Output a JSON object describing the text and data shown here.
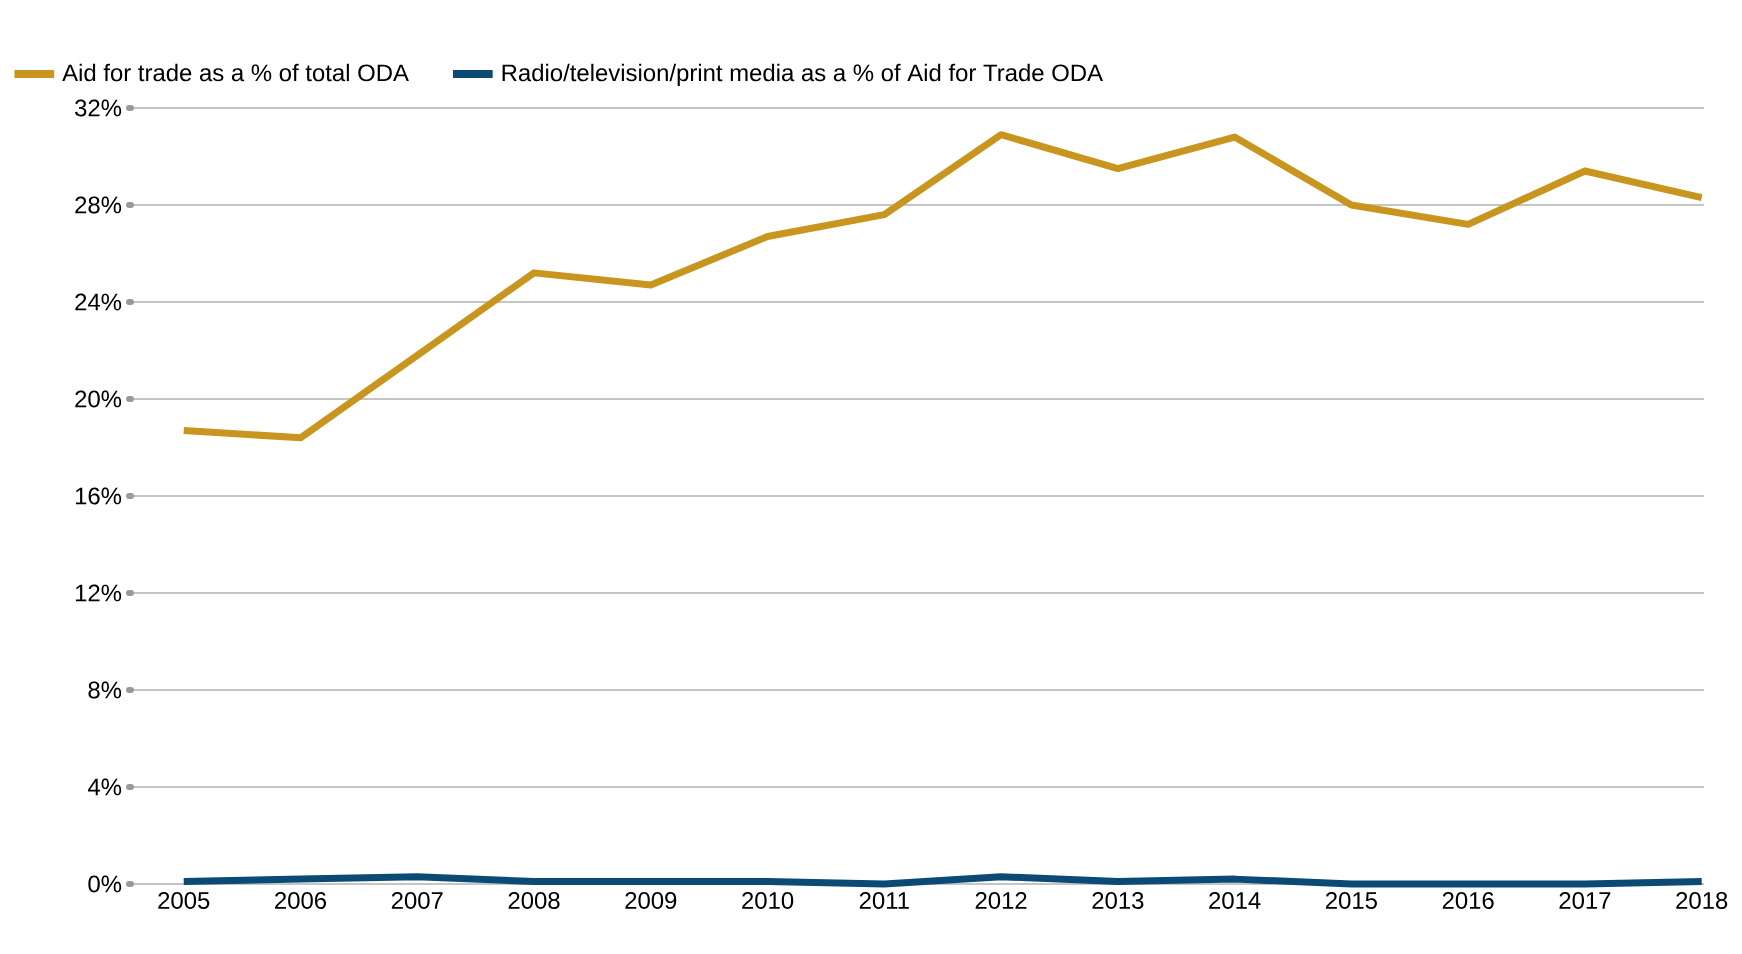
{
  "chart_data": {
    "type": "line",
    "categories": [
      "2005",
      "2006",
      "2007",
      "2008",
      "2009",
      "2010",
      "2011",
      "2012",
      "2013",
      "2014",
      "2015",
      "2016",
      "2017",
      "2018"
    ],
    "series": [
      {
        "name": "Aid for trade as a % of total ODA",
        "color": "#c8961e",
        "values": [
          18.7,
          18.4,
          21.8,
          25.2,
          24.7,
          26.7,
          27.6,
          30.9,
          29.5,
          30.8,
          28.0,
          27.2,
          29.4,
          28.3
        ]
      },
      {
        "name": "Radio/television/print media as a % of Aid for Trade ODA",
        "color": "#0b4a75",
        "values": [
          0.1,
          0.2,
          0.3,
          0.1,
          0.1,
          0.1,
          0.0,
          0.3,
          0.1,
          0.2,
          0.0,
          0.0,
          0.0,
          0.1
        ]
      }
    ],
    "ylim": [
      0,
      32
    ],
    "yticks": [
      {
        "value": 0,
        "label": "0%"
      },
      {
        "value": 4,
        "label": "4%"
      },
      {
        "value": 8,
        "label": "8%"
      },
      {
        "value": 12,
        "label": "12%"
      },
      {
        "value": 16,
        "label": "16%"
      },
      {
        "value": 20,
        "label": "20%"
      },
      {
        "value": 24,
        "label": "24%"
      },
      {
        "value": 28,
        "label": "28%"
      },
      {
        "value": 32,
        "label": "32%"
      }
    ],
    "grid": "y",
    "legend": "top",
    "marker": "none",
    "line_style": "solid"
  }
}
